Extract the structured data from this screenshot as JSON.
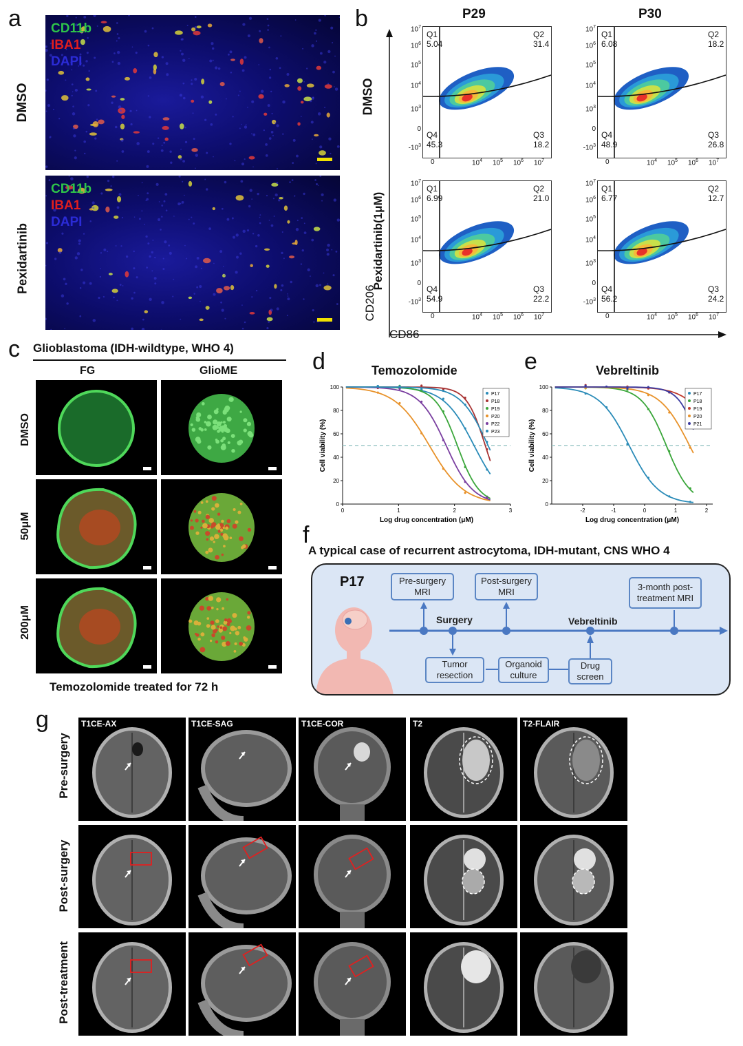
{
  "panel_a": {
    "label": "a",
    "rows": [
      {
        "label": "DMSO",
        "legend": [
          "CD11b",
          "IBA1",
          "DAPI"
        ]
      },
      {
        "label": "Pexidartinib",
        "legend": [
          "CD11b",
          "IBA1",
          "DAPI"
        ]
      }
    ],
    "colors": {
      "CD11b": "#2ec44a",
      "IBA1": "#e21e1e",
      "DAPI": "#2b2bd6",
      "scale_bar": "#f0e000"
    }
  },
  "panel_b": {
    "label": "b",
    "columns": [
      "P29",
      "P30"
    ],
    "rows": [
      "DMSO",
      "Pexidartinib(1μM)"
    ],
    "y_axis_label": "CD206",
    "x_axis_label": "CD86",
    "y_ticks": [
      "10",
      "10",
      "10",
      "10",
      "10",
      "0",
      "-10"
    ],
    "y_tick_exps": [
      "7",
      "6",
      "5",
      "4",
      "3",
      "",
      "3"
    ],
    "x_ticks": [
      "0",
      "10",
      "10",
      "10",
      "10"
    ],
    "x_tick_exps": [
      "",
      "4",
      "5",
      "6",
      "7"
    ],
    "plots": [
      {
        "row": 0,
        "col": 0,
        "q1": "5.04",
        "q2": "31.4",
        "q3": "18.2",
        "q4": "45.3"
      },
      {
        "row": 0,
        "col": 1,
        "q1": "6.08",
        "q2": "18.2",
        "q3": "26.8",
        "q4": "48.9"
      },
      {
        "row": 1,
        "col": 0,
        "q1": "6.99",
        "q2": "21.0",
        "q3": "22.2",
        "q4": "54.9"
      },
      {
        "row": 1,
        "col": 1,
        "q1": "6.77",
        "q2": "12.7",
        "q3": "24.2",
        "q4": "56.2"
      }
    ],
    "quadrant_names": [
      "Q1",
      "Q2",
      "Q3",
      "Q4"
    ]
  },
  "panel_c": {
    "label": "c",
    "title": "Glioblastoma (IDH-wildtype, WHO 4)",
    "columns": [
      "FG",
      "GlioME"
    ],
    "rows": [
      "DMSO",
      "50μM",
      "200μM"
    ],
    "caption": "Temozolomide treated for 72 h"
  },
  "chart_data": [
    {
      "type": "line",
      "label": "d",
      "title": "Temozolomide",
      "xlabel": "Log drug concentration (μM)",
      "ylabel": "Cell viability (%)",
      "xlim": [
        0,
        3
      ],
      "ylim": [
        0,
        100
      ],
      "x_ticks": [
        0,
        1,
        2,
        3
      ],
      "y_ticks": [
        0,
        20,
        40,
        60,
        80,
        100
      ],
      "reference_line": 50,
      "legend": "top-right",
      "series": [
        {
          "name": "P17",
          "color": "#2a8bb8",
          "ic50_log": 2.35,
          "slope": 1.6
        },
        {
          "name": "P18",
          "color": "#a83434",
          "ic50_log": 2.55,
          "slope": 2.6
        },
        {
          "name": "P19",
          "color": "#3aa63a",
          "ic50_log": 2.05,
          "slope": 2.2
        },
        {
          "name": "P20",
          "color": "#e8922a",
          "ic50_log": 1.55,
          "slope": 1.4
        },
        {
          "name": "P22",
          "color": "#7a3fa0",
          "ic50_log": 1.85,
          "slope": 1.8
        },
        {
          "name": "P23",
          "color": "#2a8bb8",
          "ic50_log": 2.6,
          "slope": 1.8
        }
      ]
    },
    {
      "type": "line",
      "label": "e",
      "title": "Vebreltinib",
      "xlabel": "Log drug concentration (μM)",
      "ylabel": "Cell viability (%)",
      "xlim": [
        -3,
        2.2
      ],
      "ylim": [
        0,
        100
      ],
      "x_ticks": [
        -2,
        -1,
        0,
        1,
        2
      ],
      "y_ticks": [
        0,
        20,
        40,
        60,
        80,
        100
      ],
      "reference_line": 50,
      "legend": "top-right",
      "series": [
        {
          "name": "P17",
          "color": "#2a8bb8",
          "ic50_log": -0.5,
          "slope": 0.9
        },
        {
          "name": "P18",
          "color": "#3aa63a",
          "ic50_log": 0.7,
          "slope": 1.1
        },
        {
          "name": "P19",
          "color": "#c0392b",
          "ic50_log": 2.4,
          "slope": 0.9
        },
        {
          "name": "P20",
          "color": "#e8922a",
          "ic50_log": 1.45,
          "slope": 0.9
        },
        {
          "name": "P21",
          "color": "#3a3aa0",
          "ic50_log": 1.75,
          "slope": 1.4
        }
      ]
    }
  ],
  "panel_f": {
    "label": "f",
    "title": "A typical case of  recurrent astrocytoma, IDH-mutant, CNS WHO 4",
    "patient": "P17",
    "top_boxes": [
      "Pre-surgery MRI",
      "Post-surgery MRI",
      "3-month post-treatment MRI"
    ],
    "bottom_boxes": [
      "Tumor resection",
      "Organoid culture",
      "Drug screen"
    ],
    "events": [
      "Surgery",
      "Vebreltinib"
    ],
    "colors": {
      "timeline": "#4a78c2",
      "background": "#dbe6f5"
    }
  },
  "panel_g": {
    "label": "g",
    "columns": [
      "T1CE-AX",
      "T1CE-SAG",
      "T1CE-COR",
      "T2",
      "T2-FLAIR"
    ],
    "rows": [
      "Pre-surgery",
      "Post-surgery",
      "Post-treatment"
    ]
  }
}
